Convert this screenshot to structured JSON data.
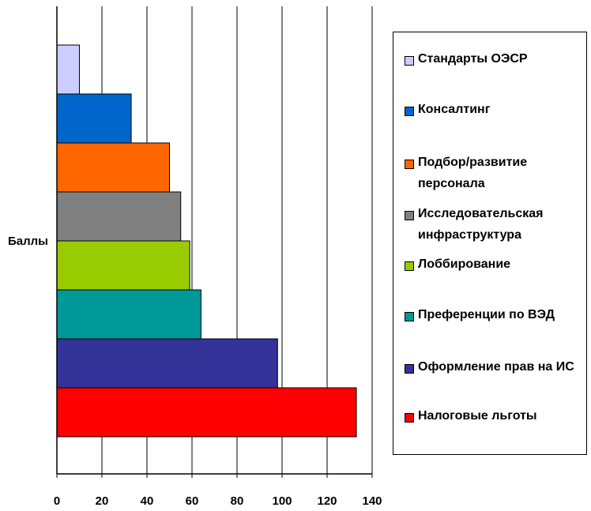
{
  "chart_data": {
    "type": "hbar",
    "y_label": "Баллы",
    "categories": [
      "Баллы"
    ],
    "series": [
      {
        "name": "Стандарты ОЭСР",
        "color": "#ccccff",
        "values": [
          10
        ]
      },
      {
        "name": "Консалтинг",
        "color": "#0066cc",
        "values": [
          33
        ]
      },
      {
        "name": "Подбор/развитие персонала",
        "color": "#ff6600",
        "values": [
          50
        ]
      },
      {
        "name": "Исследовательская инфраструктура",
        "color": "#808080",
        "values": [
          55
        ]
      },
      {
        "name": "Лоббирование",
        "color": "#99cc00",
        "values": [
          59
        ]
      },
      {
        "name": "Преференции по ВЭД",
        "color": "#009999",
        "values": [
          64
        ]
      },
      {
        "name": "Оформление прав на ИС",
        "color": "#333399",
        "values": [
          98
        ]
      },
      {
        "name": "Налоговые льготы",
        "color": "#ff0000",
        "values": [
          133
        ]
      }
    ],
    "xlim": [
      0,
      140
    ],
    "xticks": [
      0,
      20,
      40,
      60,
      80,
      100,
      120,
      140
    ],
    "grid": true,
    "legend": "right"
  }
}
